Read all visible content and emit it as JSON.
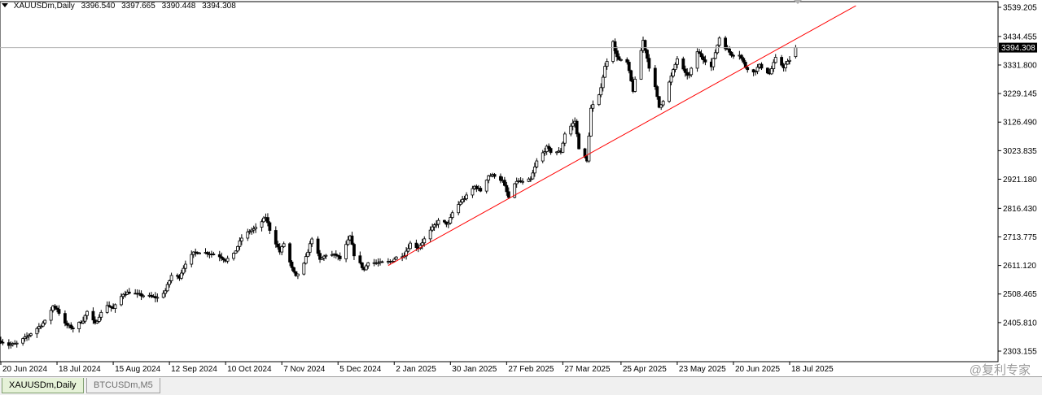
{
  "header": {
    "symbol": "XAUUSDm,Daily",
    "open": "3396.540",
    "high": "3397.665",
    "low": "3390.448",
    "close": "3394.308"
  },
  "price_tag": "3394.308",
  "tabs": [
    {
      "label": "XAUUSDm,Daily",
      "active": true
    },
    {
      "label": "BTCUSDm,M5",
      "active": false
    }
  ],
  "watermark": "@复利专家",
  "colors": {
    "candle": "#000000",
    "trendline": "#ff0000",
    "price_tag_bg": "#000000",
    "active_tab_bg": "#e6f2d8"
  },
  "chart_data": {
    "type": "candlestick",
    "symbol": "XAUUSDm",
    "timeframe": "Daily",
    "y_ticks": [
      "3539.205",
      "3434.455",
      "3331.800",
      "3229.145",
      "3126.490",
      "3023.835",
      "2921.180",
      "2816.430",
      "2713.775",
      "2611.120",
      "2508.465",
      "2405.810",
      "2303.155"
    ],
    "x_ticks": [
      "20 Jun 2024",
      "18 Jul 2024",
      "15 Aug 2024",
      "12 Sep 2024",
      "10 Oct 2024",
      "7 Nov 2024",
      "5 Dec 2024",
      "2 Jan 2025",
      "30 Jan 2025",
      "27 Feb 2025",
      "27 Mar 2025",
      "25 Apr 2025",
      "23 May 2025",
      "20 Jun 2025",
      "18 Jul 2025"
    ],
    "ylim": [
      2303.155,
      3539.205
    ],
    "current_price": 3394.308,
    "close_path": [
      [
        "2024-06-20",
        2340
      ],
      [
        "2024-06-24",
        2325
      ],
      [
        "2024-06-28",
        2330
      ],
      [
        "2024-07-03",
        2355
      ],
      [
        "2024-07-08",
        2385
      ],
      [
        "2024-07-12",
        2410
      ],
      [
        "2024-07-16",
        2465
      ],
      [
        "2024-07-18",
        2455
      ],
      [
        "2024-07-22",
        2400
      ],
      [
        "2024-07-26",
        2385
      ],
      [
        "2024-07-31",
        2415
      ],
      [
        "2024-08-02",
        2445
      ],
      [
        "2024-08-06",
        2400
      ],
      [
        "2024-08-08",
        2430
      ],
      [
        "2024-08-12",
        2470
      ],
      [
        "2024-08-15",
        2455
      ],
      [
        "2024-08-20",
        2510
      ],
      [
        "2024-08-23",
        2515
      ],
      [
        "2024-08-28",
        2505
      ],
      [
        "2024-09-02",
        2500
      ],
      [
        "2024-09-06",
        2495
      ],
      [
        "2024-09-10",
        2520
      ],
      [
        "2024-09-13",
        2575
      ],
      [
        "2024-09-17",
        2570
      ],
      [
        "2024-09-20",
        2620
      ],
      [
        "2024-09-24",
        2655
      ],
      [
        "2024-09-27",
        2660
      ],
      [
        "2024-10-02",
        2655
      ],
      [
        "2024-10-07",
        2645
      ],
      [
        "2024-10-10",
        2630
      ],
      [
        "2024-10-14",
        2650
      ],
      [
        "2024-10-18",
        2710
      ],
      [
        "2024-10-22",
        2735
      ],
      [
        "2024-10-25",
        2745
      ],
      [
        "2024-10-30",
        2785
      ],
      [
        "2024-11-01",
        2740
      ],
      [
        "2024-11-06",
        2660
      ],
      [
        "2024-11-08",
        2690
      ],
      [
        "2024-11-12",
        2600
      ],
      [
        "2024-11-14",
        2570
      ],
      [
        "2024-11-18",
        2615
      ],
      [
        "2024-11-22",
        2710
      ],
      [
        "2024-11-26",
        2630
      ],
      [
        "2024-11-29",
        2650
      ],
      [
        "2024-12-04",
        2648
      ],
      [
        "2024-12-06",
        2635
      ],
      [
        "2024-12-11",
        2715
      ],
      [
        "2024-12-13",
        2650
      ],
      [
        "2024-12-18",
        2595
      ],
      [
        "2024-12-20",
        2625
      ],
      [
        "2024-12-24",
        2620
      ],
      [
        "2024-12-27",
        2620
      ],
      [
        "2024-12-31",
        2625
      ],
      [
        "2025-01-03",
        2640
      ],
      [
        "2025-01-07",
        2650
      ],
      [
        "2025-01-10",
        2690
      ],
      [
        "2025-01-14",
        2675
      ],
      [
        "2025-01-17",
        2705
      ],
      [
        "2025-01-22",
        2755
      ],
      [
        "2025-01-24",
        2770
      ],
      [
        "2025-01-29",
        2760
      ],
      [
        "2025-01-31",
        2800
      ],
      [
        "2025-02-04",
        2840
      ],
      [
        "2025-02-07",
        2860
      ],
      [
        "2025-02-11",
        2895
      ],
      [
        "2025-02-14",
        2880
      ],
      [
        "2025-02-18",
        2935
      ],
      [
        "2025-02-21",
        2935
      ],
      [
        "2025-02-25",
        2915
      ],
      [
        "2025-02-28",
        2855
      ],
      [
        "2025-03-04",
        2915
      ],
      [
        "2025-03-07",
        2910
      ],
      [
        "2025-03-11",
        2920
      ],
      [
        "2025-03-14",
        2985
      ],
      [
        "2025-03-19",
        3035
      ],
      [
        "2025-03-21",
        3020
      ],
      [
        "2025-03-26",
        3020
      ],
      [
        "2025-03-28",
        3085
      ],
      [
        "2025-04-02",
        3130
      ],
      [
        "2025-04-04",
        3035
      ],
      [
        "2025-04-08",
        2985
      ],
      [
        "2025-04-10",
        3175
      ],
      [
        "2025-04-14",
        3220
      ],
      [
        "2025-04-17",
        3325
      ],
      [
        "2025-04-21",
        3420
      ],
      [
        "2025-04-22",
        3380
      ],
      [
        "2025-04-24",
        3350
      ],
      [
        "2025-04-28",
        3340
      ],
      [
        "2025-05-01",
        3240
      ],
      [
        "2025-05-06",
        3420
      ],
      [
        "2025-05-09",
        3325
      ],
      [
        "2025-05-12",
        3250
      ],
      [
        "2025-05-14",
        3180
      ],
      [
        "2025-05-16",
        3205
      ],
      [
        "2025-05-20",
        3290
      ],
      [
        "2025-05-23",
        3355
      ],
      [
        "2025-05-27",
        3300
      ],
      [
        "2025-05-29",
        3295
      ],
      [
        "2025-06-02",
        3380
      ],
      [
        "2025-06-05",
        3355
      ],
      [
        "2025-06-09",
        3325
      ],
      [
        "2025-06-13",
        3430
      ],
      [
        "2025-06-16",
        3395
      ],
      [
        "2025-06-19",
        3370
      ],
      [
        "2025-06-23",
        3370
      ],
      [
        "2025-06-26",
        3325
      ],
      [
        "2025-06-30",
        3305
      ],
      [
        "2025-07-03",
        3330
      ],
      [
        "2025-07-08",
        3300
      ],
      [
        "2025-07-11",
        3355
      ],
      [
        "2025-07-15",
        3325
      ],
      [
        "2025-07-18",
        3350
      ],
      [
        "2025-07-21",
        3394.308
      ]
    ],
    "trendline": {
      "start": [
        "2024-12-30",
        2611
      ],
      "end": [
        "2025-08-20",
        3545
      ]
    }
  }
}
